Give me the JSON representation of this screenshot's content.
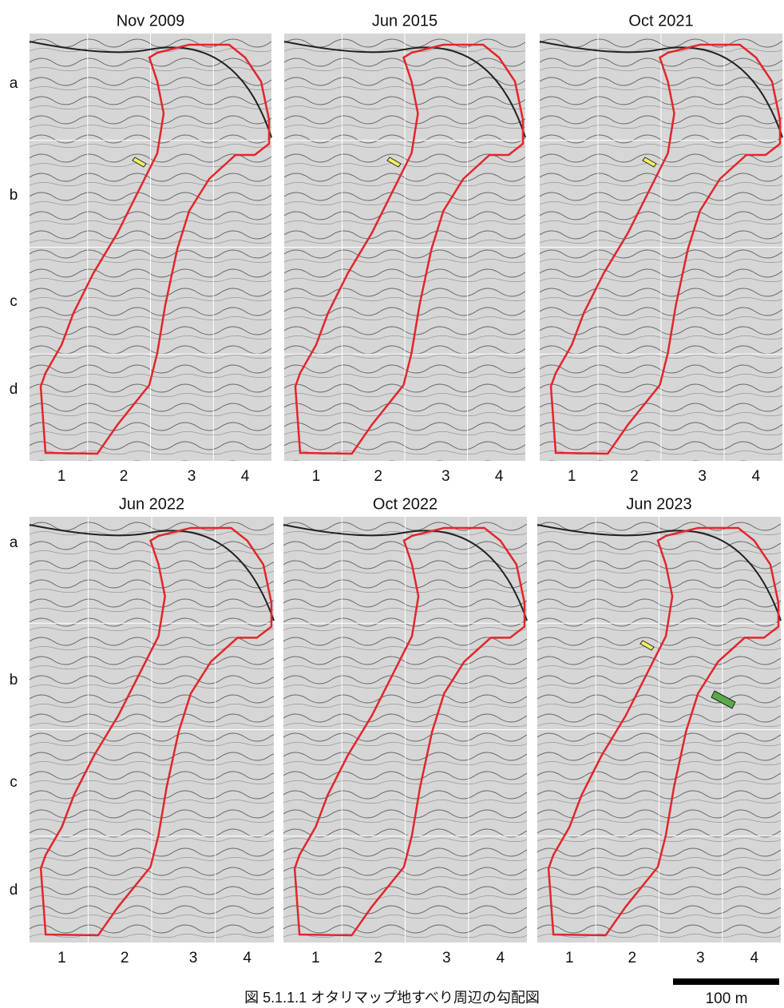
{
  "panels": [
    {
      "title": "Nov 2009",
      "col_labels": [
        "1",
        "2",
        "3",
        "4"
      ]
    },
    {
      "title": "Jun 2015",
      "col_labels": [
        "1",
        "2",
        "3",
        "4"
      ]
    },
    {
      "title": "Oct  2021",
      "col_labels": [
        "1",
        "2",
        "3",
        "4"
      ]
    },
    {
      "title": "Jun 2022",
      "col_labels": [
        "1",
        "2",
        "3",
        "4"
      ]
    },
    {
      "title": "Oct 2022",
      "col_labels": [
        "1",
        "2",
        "3",
        "4"
      ]
    },
    {
      "title": "Jun 2023",
      "col_labels": [
        "1",
        "2",
        "3",
        "4"
      ]
    }
  ],
  "row_labels": [
    [
      "a",
      "b",
      "c",
      "d"
    ],
    [
      "a",
      "b",
      "c",
      "d"
    ]
  ],
  "caption": "図 5.1.1.1  オタリマップ地すべり周辺の勾配図",
  "scale_label": "100 m"
}
